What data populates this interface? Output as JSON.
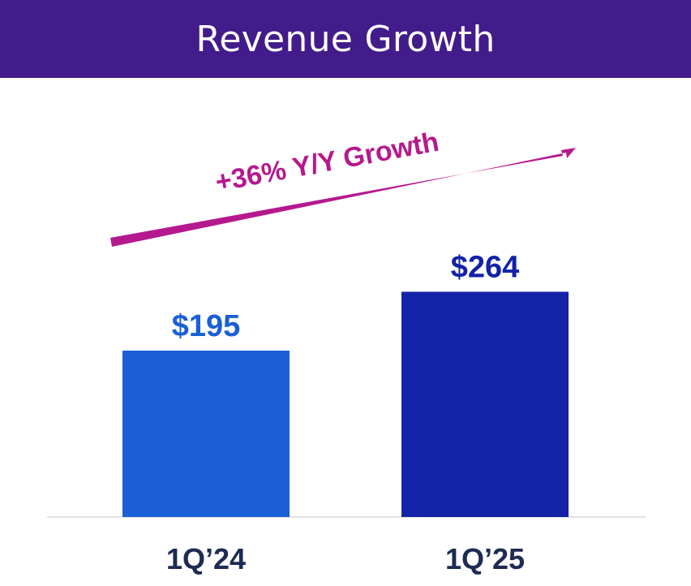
{
  "header": {
    "title": "Revenue Growth"
  },
  "chart_data": {
    "type": "bar",
    "categories": [
      "1Q’24",
      "1Q’25"
    ],
    "values": [
      195,
      264
    ],
    "value_labels": [
      "$195",
      "$264"
    ],
    "annotation": "+36% Y/Y Growth",
    "colors": {
      "bars": [
        "#1a5fd5",
        "#1322a7"
      ],
      "value_labels": [
        "#1a5fd5",
        "#1322a7"
      ],
      "annotation": "#b5198e",
      "tick_labels": "#1e2b52",
      "header_bg": "#421c8a"
    },
    "ylim": [
      0,
      300
    ],
    "grid": false,
    "legend": "none"
  }
}
